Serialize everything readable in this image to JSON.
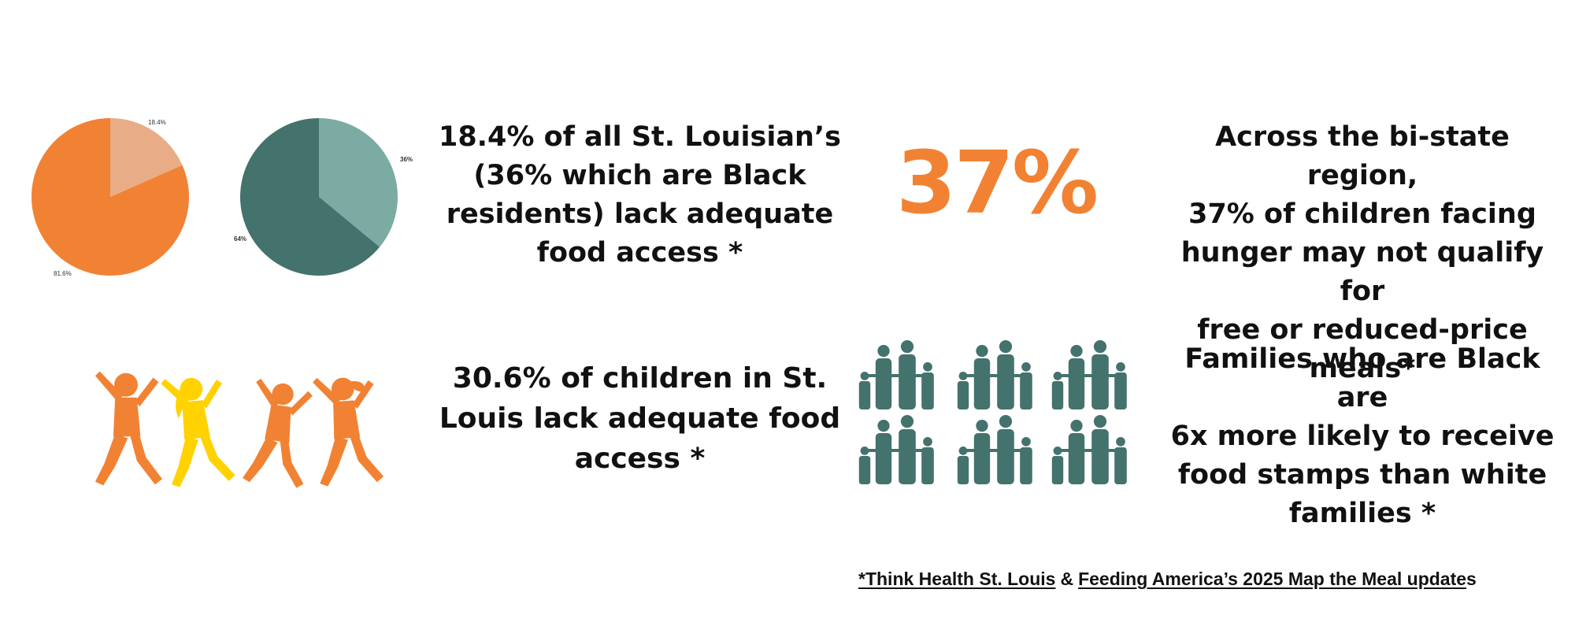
{
  "colors": {
    "orange": "#F28233",
    "light_orange": "#E8AD86",
    "dark_teal": "#44726C",
    "light_teal": "#7CABA4",
    "yellow": "#FFD200",
    "text": "#111111"
  },
  "chart_data": [
    {
      "type": "pie",
      "slices": [
        {
          "label": "18.4%",
          "value": 18.4,
          "color": "#E8AD86"
        },
        {
          "label": "81.6%",
          "value": 81.6,
          "color": "#F28233"
        }
      ]
    },
    {
      "type": "pie",
      "slices": [
        {
          "label": "36%",
          "value": 36,
          "color": "#7CABA4"
        },
        {
          "label": "64%",
          "value": 64,
          "color": "#44726C"
        }
      ]
    }
  ],
  "stats": {
    "access_all": "18.4% of all St. Louisian’s\n(36% which are Black\nresidents)  lack adequate\nfood access *",
    "children_access": "30.6% of children in St.\nLouis lack adequate food\naccess *",
    "big_percent": "37%",
    "region_children": "Across the bi-state region,\n37% of children facing\nhunger may not qualify for\nfree or reduced-price\nmeals*",
    "food_stamps": "Families who are Black are\n6x more likely to receive\nfood stamps than white\nfamilies *"
  },
  "sources": {
    "first": "*Think Health St. Louis",
    "amp": "&",
    "second": "Feeding America’s 2025 Map the Meal update",
    "tail": "s"
  },
  "icons": {
    "children": [
      "running-child-icon",
      "running-girl-icon",
      "running-boy-icon",
      "running-girl-icon"
    ],
    "families": "family-group-icon"
  }
}
